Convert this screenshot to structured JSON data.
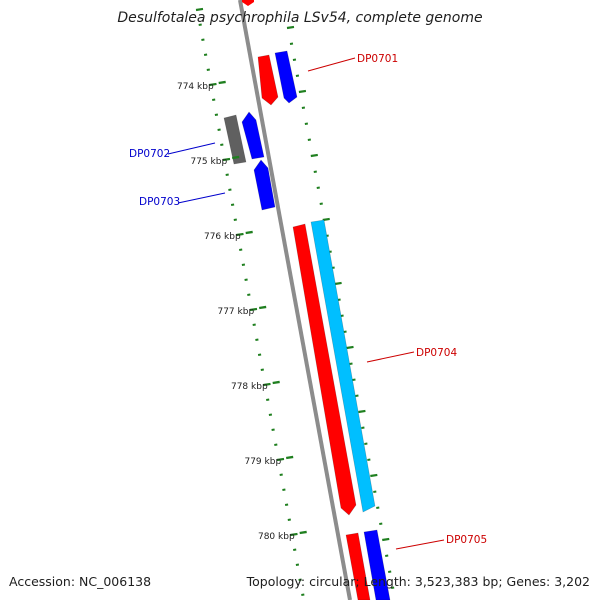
{
  "title": "Desulfotalea psychrophila LSv54, complete genome",
  "footer": {
    "accession": "Accession: NC_006138",
    "summary": "Topology: circular; Length: 3,523,383 bp; Genes: 3,202"
  },
  "colors": {
    "backbone": "#8c8c8c",
    "tick": "#1f7f1f",
    "red": "#ff0000",
    "blue": "#0000ff",
    "cyan": "#00bfff",
    "gray": "#606060"
  },
  "ruler": {
    "unit": "kbp",
    "labels": [
      "774 kbp",
      "775 kbp",
      "776 kbp",
      "777 kbp",
      "778 kbp",
      "779 kbp",
      "780 kbp"
    ]
  },
  "genes": [
    {
      "label": "DP0701",
      "label_color": "#cc0000"
    },
    {
      "label": "DP0702",
      "label_color": "#0000cc"
    },
    {
      "label": "DP0703",
      "label_color": "#0000cc"
    },
    {
      "label": "DP0704",
      "label_color": "#cc0000"
    },
    {
      "label": "DP0705",
      "label_color": "#cc0000"
    }
  ]
}
